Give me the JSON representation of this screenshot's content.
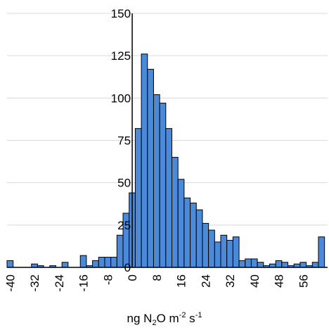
{
  "chart_data": {
    "type": "bar",
    "title": "",
    "ylabel": "",
    "xlabel": {
      "p1": "ng N",
      "sub": "2",
      "p2": "O m",
      "sup1": "-2",
      "p3": " s",
      "sup2": "-1"
    },
    "ylim": [
      0,
      150
    ],
    "yticks": [
      "0",
      "25",
      "50",
      "75",
      "100",
      "125",
      "150"
    ],
    "xlim": [
      -41,
      64
    ],
    "xticks": [
      "-40",
      "-32",
      "-24",
      "-16",
      "-8",
      "0",
      "8",
      "16",
      "24",
      "32",
      "40",
      "48",
      "56"
    ],
    "bin_width": 2,
    "bin_starts": [
      -41,
      -39,
      -37,
      -35,
      -33,
      -31,
      -29,
      -27,
      -25,
      -23,
      -21,
      -19,
      -17,
      -15,
      -13,
      -11,
      -9,
      -7,
      -5,
      -3,
      -1,
      1,
      3,
      5,
      7,
      9,
      11,
      13,
      15,
      17,
      19,
      21,
      23,
      25,
      27,
      29,
      31,
      33,
      35,
      37,
      39,
      41,
      43,
      45,
      47,
      49,
      51,
      53,
      55,
      57,
      59,
      61
    ],
    "values": [
      4,
      0,
      0,
      0,
      2,
      1,
      0,
      1,
      0,
      3,
      0,
      0,
      7,
      1,
      4,
      6,
      6,
      6,
      19,
      32,
      44,
      82,
      126,
      117,
      102,
      97,
      82,
      65,
      52,
      41,
      38,
      34,
      26,
      22,
      15,
      19,
      16,
      18,
      4,
      5,
      5,
      3,
      1,
      2,
      4,
      3,
      1,
      2,
      3,
      1,
      3,
      18
    ],
    "colors": {
      "bar_fill": "#4a8ad8",
      "bar_edge": "#000000",
      "grid": "#d9d9d9",
      "axis": "#000000"
    }
  }
}
